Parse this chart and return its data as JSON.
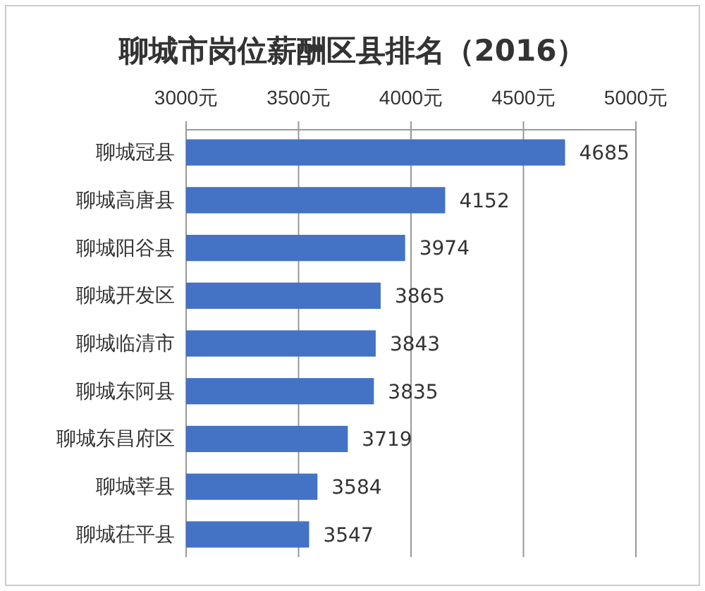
{
  "chart_data": {
    "type": "bar",
    "orientation": "horizontal",
    "title": "聊城市岗位薪酬区县排名（2016）",
    "categories": [
      "聊城冠县",
      "聊城高唐县",
      "聊城阳谷县",
      "聊城开发区",
      "聊城临清市",
      "聊城东阿县",
      "聊城东昌府区",
      "聊城莘县",
      "聊城茌平县"
    ],
    "values": [
      4685,
      4152,
      3974,
      3865,
      3843,
      3835,
      3719,
      3584,
      3547
    ],
    "color": "#4472c4",
    "xlim": [
      3000,
      5000
    ],
    "xticks": [
      {
        "value": 3000,
        "label": "3000元"
      },
      {
        "value": 3500,
        "label": "3500元"
      },
      {
        "value": 4000,
        "label": "4000元"
      },
      {
        "value": 4500,
        "label": "4500元"
      },
      {
        "value": 5000,
        "label": "5000元"
      }
    ],
    "grid": "x",
    "data_labels": true
  }
}
